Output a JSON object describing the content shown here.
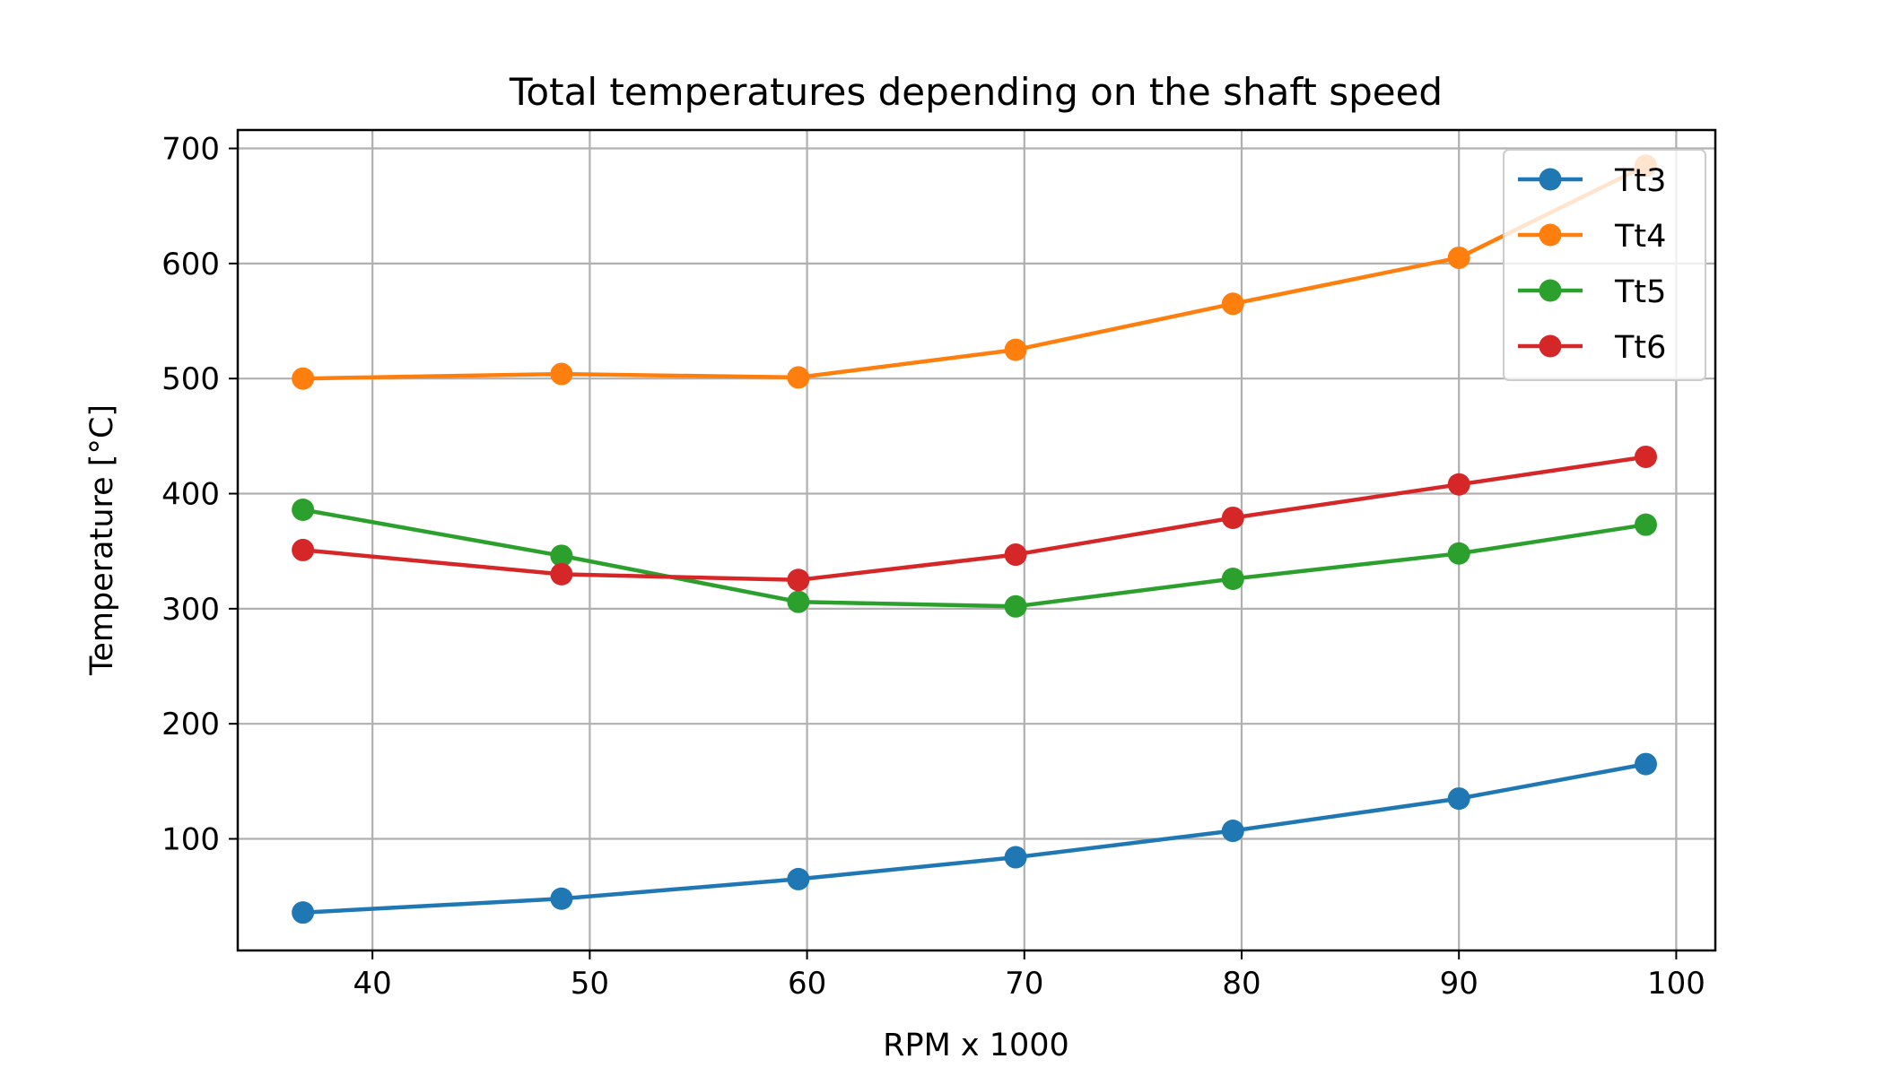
{
  "chart_data": {
    "type": "line",
    "title": "Total temperatures depending on the shaft speed",
    "xlabel": "RPM x 1000",
    "ylabel": "Temperature [°C]",
    "xlim": [
      33.8,
      101.8
    ],
    "ylim": [
      3,
      716
    ],
    "xticks": [
      40,
      50,
      60,
      70,
      80,
      90,
      100
    ],
    "yticks": [
      100,
      200,
      300,
      400,
      500,
      600,
      700
    ],
    "grid": true,
    "legend_position": "top-right",
    "x": [
      36.8,
      48.7,
      59.6,
      69.6,
      79.6,
      90.0,
      98.6
    ],
    "series": [
      {
        "name": "Tt3",
        "color": "#1f77b4",
        "values": [
          36,
          48,
          65,
          84,
          107,
          135,
          165
        ]
      },
      {
        "name": "Tt4",
        "color": "#ff7f0e",
        "values": [
          500,
          504,
          501,
          525,
          565,
          605,
          685
        ]
      },
      {
        "name": "Tt5",
        "color": "#2ca02c",
        "values": [
          386,
          346,
          306,
          302,
          326,
          348,
          373
        ]
      },
      {
        "name": "Tt6",
        "color": "#d62728",
        "values": [
          351,
          330,
          325,
          347,
          379,
          408,
          432
        ]
      }
    ]
  }
}
